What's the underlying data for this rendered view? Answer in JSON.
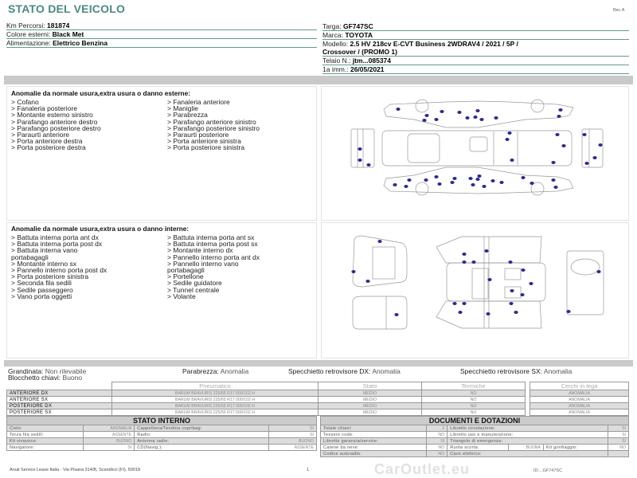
{
  "header": {
    "title": "STATO DEL VEICOLO",
    "rev": "Rev. A"
  },
  "vehicle_left": [
    {
      "label": "Km Percorsi:",
      "value": "181874"
    },
    {
      "label": "Colore esterni:",
      "value": "Black Met"
    },
    {
      "label": "Alimentazione:",
      "value": "Elettrico Benzina"
    }
  ],
  "vehicle_right": [
    {
      "label": "Targa:",
      "value": "GF747SC"
    },
    {
      "label": "Marca:",
      "value": "TOYOTA"
    },
    {
      "label": "Modello:",
      "value": "2.5 HV 218cv E-CVT Business 2WDRAV4 / 2021 / 5P /"
    },
    {
      "label": "",
      "value": "Crossover / (PROMO 1)"
    },
    {
      "label": "Telaio N.:",
      "value": "jtm...085374"
    },
    {
      "label": "1a imm.:",
      "value": "26/05/2021"
    }
  ],
  "exterior": {
    "heading": "Anomalie da normale usura,extra usura o danno esterne:",
    "col1": "> Cofano\n> Fanaleria posteriore\n> Montante esterno sinistro\n> Parafango anteriore destro\n> Parafango posteriore destro\n> Paraurti anteriore\n> Porta anteriore destra\n> Porta posteriore destra",
    "col2": "> Fanaleria anteriore\n> Maniglie\n> Parabrezza\n> Parafango anteriore sinistro\n> Parafango posteriore sinistro\n> Paraurti posteriore\n> Porta anteriore sinistra\n> Porta posteriore sinistra"
  },
  "interior": {
    "heading": "Anomalie da normale usura,extra usura o danno interne:",
    "col1": "> Battuta interna porta ant dx\n> Battuta interna porta post dx\n> Battuta interna vano\nportabagagli\n> Montante interno sx\n> Pannello interno porta post dx\n> Porta posteriore sinistra\n> Seconda fila sedili\n> Sedile passeggero\n> Vano porta oggetti",
    "col2": "> Battuta interna porta ant sx\n> Battuta interna porta post sx\n> Montante interno dx\n> Pannello interno porta ant dx\n> Pannello interno vano\nportabagagli\n> Portellone\n> Sedile guidatore\n> Tunnel centrale\n> Volante"
  },
  "misc": {
    "grandinata_label": "Grandinata:",
    "grandinata": "Non rilevabile",
    "chiavi_label": "Blocchetto chiavi:",
    "chiavi": "Buono",
    "parabrezza_label": "Parabrezza:",
    "parabrezza": "Anomalia",
    "spdx_label": "Specchietto retrovisore DX:",
    "spdx": "Anomalia",
    "spsx_label": "Specchietto retrovisore SX:",
    "spsx": "Anomalia"
  },
  "tyres": {
    "headers": [
      "Pneumatico",
      "Stato",
      "Termiche"
    ],
    "cerchi_header": "Cerchi in lega",
    "rows": [
      {
        "pos": "ANTERIORE DX",
        "tyre": "BARUM BRAVURIS 225/65 R17 000/102 H",
        "stato": "MEDIO",
        "termiche": "NO",
        "cerchi": "ANOMALIA"
      },
      {
        "pos": "ANTERIORE SX",
        "tyre": "BARUM BRAVURIS 225/65 R17 000/102 H",
        "stato": "MEDIO",
        "termiche": "NO",
        "cerchi": "ANOMALIA"
      },
      {
        "pos": "POSTERIORE DX",
        "tyre": "BARUM BRAVURIS 225/65 R17 000/102 H",
        "stato": "MEDIO",
        "termiche": "NO",
        "cerchi": "ANOMALIA"
      },
      {
        "pos": "POSTERIORE SX",
        "tyre": "BARUM BRAVURIS 225/65 R17 000/102 H",
        "stato": "MEDIO",
        "termiche": "NO",
        "cerchi": "ANOMALIA"
      }
    ]
  },
  "stato_interno": {
    "title": "STATO INTERNO",
    "rows": [
      [
        "Cielo:",
        "ANOMALIA",
        "Cappelliera/Tendina copribag:",
        "SI"
      ],
      [
        "Terza fila sedili:",
        "ASSENTE",
        "Radio:",
        "SI"
      ],
      [
        "Kit vivavoce:",
        "BUONO",
        "Antenna radio:",
        "BUONO"
      ],
      [
        "Navigatore:",
        "SI",
        "CD(Navig.):",
        "ASSENTE"
      ]
    ]
  },
  "documenti": {
    "title": "DOCUMENTI E DOTAZIONI",
    "rows": [
      [
        "Totale chiavi:",
        "2",
        "Libretto circolazione:",
        "SI"
      ],
      [
        "Tessere code:",
        "NO",
        "Libretto uso e manutenzione:",
        "SI"
      ],
      [
        "Libretto garanzia/service:",
        "SI",
        "Triangolo di emergenza:",
        "SI"
      ],
      [
        "Catene da neve:",
        "NO",
        "Ruota scorta:",
        "BUONA",
        "Kit gonfiaggio:",
        "NO"
      ],
      [
        "Codice autoradio:",
        "NO",
        "Cavo elettrico:",
        ""
      ]
    ]
  },
  "footer": {
    "address": "Arval Service Lease Italia - Via Pisana 314/B, Scandicci (FI), 50018",
    "page": "1",
    "docid": "ID:...GF747SC",
    "watermark": "CarOutlet.eu"
  },
  "colors": {
    "title": "#4a8a80",
    "damage_dot": "#2b2b8f",
    "bar": "#c9c9c9"
  }
}
